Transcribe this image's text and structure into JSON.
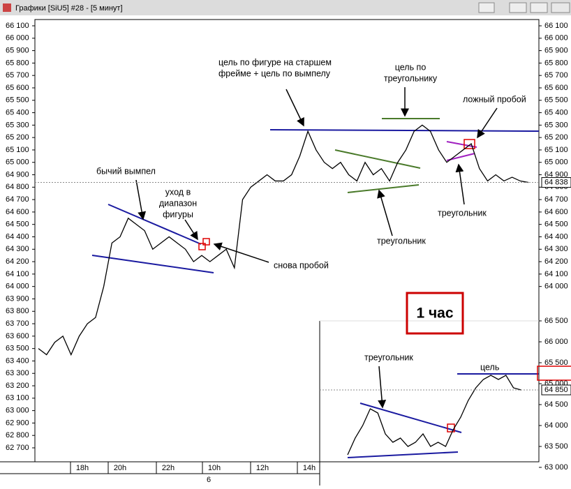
{
  "window": {
    "title": "Графики [SiU5] #28 - [5 минут]"
  },
  "main": {
    "type": "line",
    "ylim": [
      62700,
      66100
    ],
    "yticks": [
      {
        "value": 66100,
        "label": "66 100"
      },
      {
        "value": 66000,
        "label": "66 000"
      },
      {
        "value": 65900,
        "label": "65 900"
      },
      {
        "value": 65800,
        "label": "65 800"
      },
      {
        "value": 65700,
        "label": "65 700"
      },
      {
        "value": 65600,
        "label": "65 600"
      },
      {
        "value": 65500,
        "label": "65 500"
      },
      {
        "value": 65400,
        "label": "65 400"
      },
      {
        "value": 65300,
        "label": "65 300"
      },
      {
        "value": 65200,
        "label": "65 200"
      },
      {
        "value": 65100,
        "label": "65 100"
      },
      {
        "value": 65000,
        "label": "65 000"
      },
      {
        "value": 64900,
        "label": "64 900"
      },
      {
        "value": 64800,
        "label": "64 800"
      },
      {
        "value": 64700,
        "label": "64 700"
      },
      {
        "value": 64600,
        "label": "64 600"
      },
      {
        "value": 64500,
        "label": "64 500"
      },
      {
        "value": 64400,
        "label": "64 400"
      },
      {
        "value": 64300,
        "label": "64 300"
      },
      {
        "value": 64200,
        "label": "64 200"
      },
      {
        "value": 64100,
        "label": "64 100"
      },
      {
        "value": 64000,
        "label": "64 000"
      },
      {
        "value": 63900,
        "label": "63 900"
      },
      {
        "value": 63800,
        "label": "63 800"
      },
      {
        "value": 63700,
        "label": "63 700"
      },
      {
        "value": 63600,
        "label": "63 600"
      },
      {
        "value": 63500,
        "label": "63 500"
      },
      {
        "value": 63400,
        "label": "63 400"
      },
      {
        "value": 63300,
        "label": "63 300"
      },
      {
        "value": 63200,
        "label": "63 200"
      },
      {
        "value": 63100,
        "label": "63 100"
      },
      {
        "value": 63000,
        "label": "63 000"
      },
      {
        "value": 62900,
        "label": "62 900"
      },
      {
        "value": 62800,
        "label": "62 800"
      },
      {
        "value": 62700,
        "label": "62 700"
      }
    ],
    "time_labels": [
      "18h",
      "20h",
      "22h",
      "10h",
      "12h",
      "14h"
    ],
    "date_label": "6",
    "values": [
      63500,
      63450,
      63550,
      63600,
      63450,
      63600,
      63700,
      63750,
      64000,
      64350,
      64400,
      64550,
      64500,
      64450,
      64300,
      64350,
      64400,
      64350,
      64300,
      64200,
      64250,
      64200,
      64250,
      64300,
      64150,
      64700,
      64800,
      64850,
      64900,
      64850,
      64850,
      64900,
      65050,
      65250,
      65100,
      65000,
      64950,
      65000,
      64900,
      64850,
      65000,
      64900,
      64950,
      64850,
      65000,
      65100,
      65250,
      65300,
      65250,
      65100,
      65000,
      65050,
      65100,
      65150,
      64950,
      64850,
      64900,
      64850,
      64880,
      64850,
      64838
    ],
    "last_price": {
      "value": 64838,
      "label": "64 838"
    },
    "color": "#000000"
  },
  "inset": {
    "type": "line",
    "ylim": [
      63000,
      66500
    ],
    "yticks": [
      {
        "value": 66500,
        "label": "66 500"
      },
      {
        "value": 66000,
        "label": "66 000"
      },
      {
        "value": 65500,
        "label": "65 500"
      },
      {
        "value": 65000,
        "label": "65 000"
      },
      {
        "value": 64500,
        "label": "64 500"
      },
      {
        "value": 64000,
        "label": "64 000"
      },
      {
        "value": 63500,
        "label": "63 500"
      },
      {
        "value": 63000,
        "label": "63 000"
      }
    ],
    "values": [
      63300,
      63700,
      64000,
      64400,
      64300,
      63800,
      63600,
      63700,
      63500,
      63600,
      63800,
      63500,
      63600,
      63500,
      63900,
      64200,
      64600,
      64900,
      65100,
      65200,
      65100,
      65200,
      64900,
      64850
    ],
    "last_price": {
      "value": 64850,
      "label": "64 850"
    },
    "timeframe": "1 час",
    "color": "#000000"
  },
  "annotations": {
    "target_big": [
      "цель по фигуре на старшем",
      "фрейме + цель по вымпелу"
    ],
    "target_triangle": [
      "цель по",
      "треугольнику"
    ],
    "false_break": "ложный пробой",
    "bull_pennant": "бычий вымпел",
    "exit_range": [
      "уход в",
      "диапазон",
      "фигуры"
    ],
    "break_again": "снова пробой",
    "triangle_1": "треугольник",
    "triangle_2": "треугольник",
    "triangle_3": "треугольник",
    "target_inset": "цель"
  }
}
